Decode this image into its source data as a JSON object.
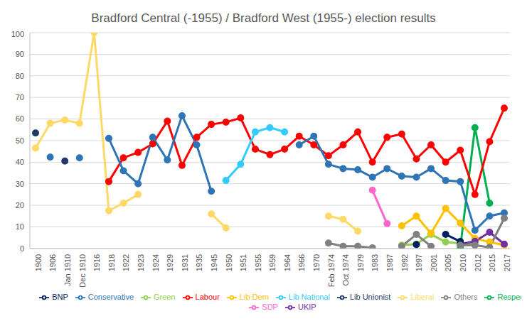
{
  "chart_data": {
    "type": "line",
    "title": "Bradford Central (-1955) / Bradford West (1955-) election results",
    "categories": [
      "1900",
      "1906",
      "Jan 1910",
      "Dec 1910",
      "1916",
      "1918",
      "1922",
      "1923",
      "1924",
      "1929",
      "1931",
      "1935",
      "1945",
      "1950",
      "1951",
      "1955",
      "1959",
      "1964",
      "1966",
      "1970",
      "Feb 1974",
      "Oct 1974",
      "1979",
      "1983",
      "1987",
      "1992",
      "1997",
      "2001",
      "2005",
      "2010",
      "2012",
      "2015",
      "2017"
    ],
    "ylim": [
      0,
      100
    ],
    "yticks": [
      0,
      10,
      20,
      30,
      40,
      50,
      60,
      70,
      80,
      90,
      100
    ],
    "grid": true,
    "legend": "bottom",
    "marker": "circle",
    "series": [
      {
        "name": "Respect",
        "color": "#00B050",
        "values": [
          null,
          null,
          null,
          null,
          null,
          null,
          null,
          null,
          null,
          null,
          null,
          null,
          null,
          null,
          null,
          null,
          null,
          null,
          null,
          null,
          null,
          null,
          null,
          null,
          null,
          null,
          null,
          null,
          null,
          0.5,
          56,
          21,
          null
        ]
      },
      {
        "name": "Green",
        "color": "#92D050",
        "values": [
          null,
          null,
          null,
          null,
          null,
          null,
          null,
          null,
          null,
          null,
          null,
          null,
          null,
          null,
          null,
          null,
          null,
          null,
          null,
          null,
          null,
          null,
          null,
          null,
          null,
          1.5,
          2,
          6.5,
          3,
          2.3,
          2,
          null,
          null
        ]
      },
      {
        "name": "Labour",
        "color": "#FF0000",
        "values": [
          null,
          null,
          null,
          null,
          null,
          31,
          42,
          44.5,
          48.5,
          59,
          38.5,
          51.5,
          57.5,
          58.5,
          60.5,
          46,
          43.5,
          46,
          52,
          48,
          43,
          48,
          54,
          40,
          51.5,
          53,
          41.5,
          48,
          40,
          45.5,
          25,
          49.5,
          65
        ]
      },
      {
        "name": "SDP",
        "color": "#FF66CC",
        "values": [
          null,
          null,
          null,
          null,
          null,
          null,
          null,
          null,
          null,
          null,
          null,
          null,
          null,
          null,
          null,
          null,
          null,
          null,
          null,
          null,
          null,
          null,
          null,
          27,
          11.5,
          null,
          null,
          null,
          null,
          null,
          null,
          null,
          null
        ]
      },
      {
        "name": "Lib Dem",
        "color": "#FFC000",
        "values": [
          null,
          null,
          null,
          null,
          null,
          null,
          null,
          null,
          null,
          null,
          null,
          null,
          null,
          null,
          null,
          null,
          null,
          null,
          null,
          null,
          null,
          null,
          null,
          null,
          null,
          10.5,
          15,
          7,
          18.5,
          11.7,
          4.6,
          3,
          1.5
        ]
      },
      {
        "name": "Liberal",
        "color": "#FFD966",
        "values": [
          46.5,
          58,
          59.5,
          58,
          100,
          17.5,
          21,
          25,
          null,
          null,
          null,
          null,
          16,
          9.5,
          null,
          null,
          null,
          null,
          null,
          null,
          15,
          13.5,
          8,
          null,
          null,
          null,
          null,
          null,
          null,
          null,
          null,
          null,
          null
        ]
      },
      {
        "name": "Lib National",
        "color": "#33CCFF",
        "values": [
          null,
          null,
          null,
          null,
          null,
          null,
          null,
          null,
          null,
          null,
          null,
          null,
          null,
          31.5,
          39,
          54,
          56,
          54,
          null,
          null,
          null,
          null,
          null,
          null,
          null,
          null,
          null,
          null,
          null,
          null,
          null,
          null,
          null
        ]
      },
      {
        "name": "Lib Unionist",
        "color": "#1F3864",
        "values": [
          53.5,
          null,
          40.5,
          null,
          null,
          null,
          null,
          null,
          null,
          null,
          null,
          null,
          null,
          null,
          null,
          null,
          null,
          null,
          null,
          null,
          null,
          null,
          null,
          null,
          null,
          null,
          null,
          null,
          null,
          null,
          null,
          null,
          null
        ]
      },
      {
        "name": "Conservative",
        "color": "#2E75B6",
        "values": [
          null,
          42.3,
          null,
          42,
          null,
          51,
          36,
          30,
          51.5,
          41,
          61.5,
          48,
          26.5,
          null,
          null,
          null,
          null,
          null,
          48,
          52,
          39,
          37,
          36.5,
          33,
          37,
          33.5,
          33,
          37,
          31.5,
          31,
          8.4,
          15,
          16.5
        ]
      },
      {
        "name": "UKIP",
        "color": "#7030A0",
        "values": [
          null,
          null,
          null,
          null,
          null,
          null,
          null,
          null,
          null,
          null,
          null,
          null,
          null,
          null,
          null,
          null,
          null,
          null,
          null,
          null,
          null,
          null,
          null,
          null,
          null,
          null,
          null,
          null,
          null,
          2,
          3.3,
          7.5,
          2
        ]
      },
      {
        "name": "BNP",
        "color": "#002060",
        "values": [
          null,
          null,
          null,
          null,
          null,
          null,
          null,
          null,
          null,
          null,
          null,
          null,
          null,
          null,
          null,
          null,
          null,
          null,
          null,
          null,
          null,
          null,
          null,
          null,
          null,
          null,
          1.8,
          null,
          6.5,
          3.2,
          null,
          null,
          null
        ]
      },
      {
        "name": "Others",
        "color": "#808080",
        "values": [
          null,
          null,
          null,
          null,
          null,
          null,
          null,
          null,
          null,
          null,
          null,
          null,
          null,
          null,
          null,
          null,
          null,
          null,
          null,
          null,
          2.5,
          1,
          1,
          0.3,
          null,
          1,
          6.5,
          1,
          null,
          1.5,
          1.5,
          0.5,
          14
        ]
      }
    ]
  }
}
